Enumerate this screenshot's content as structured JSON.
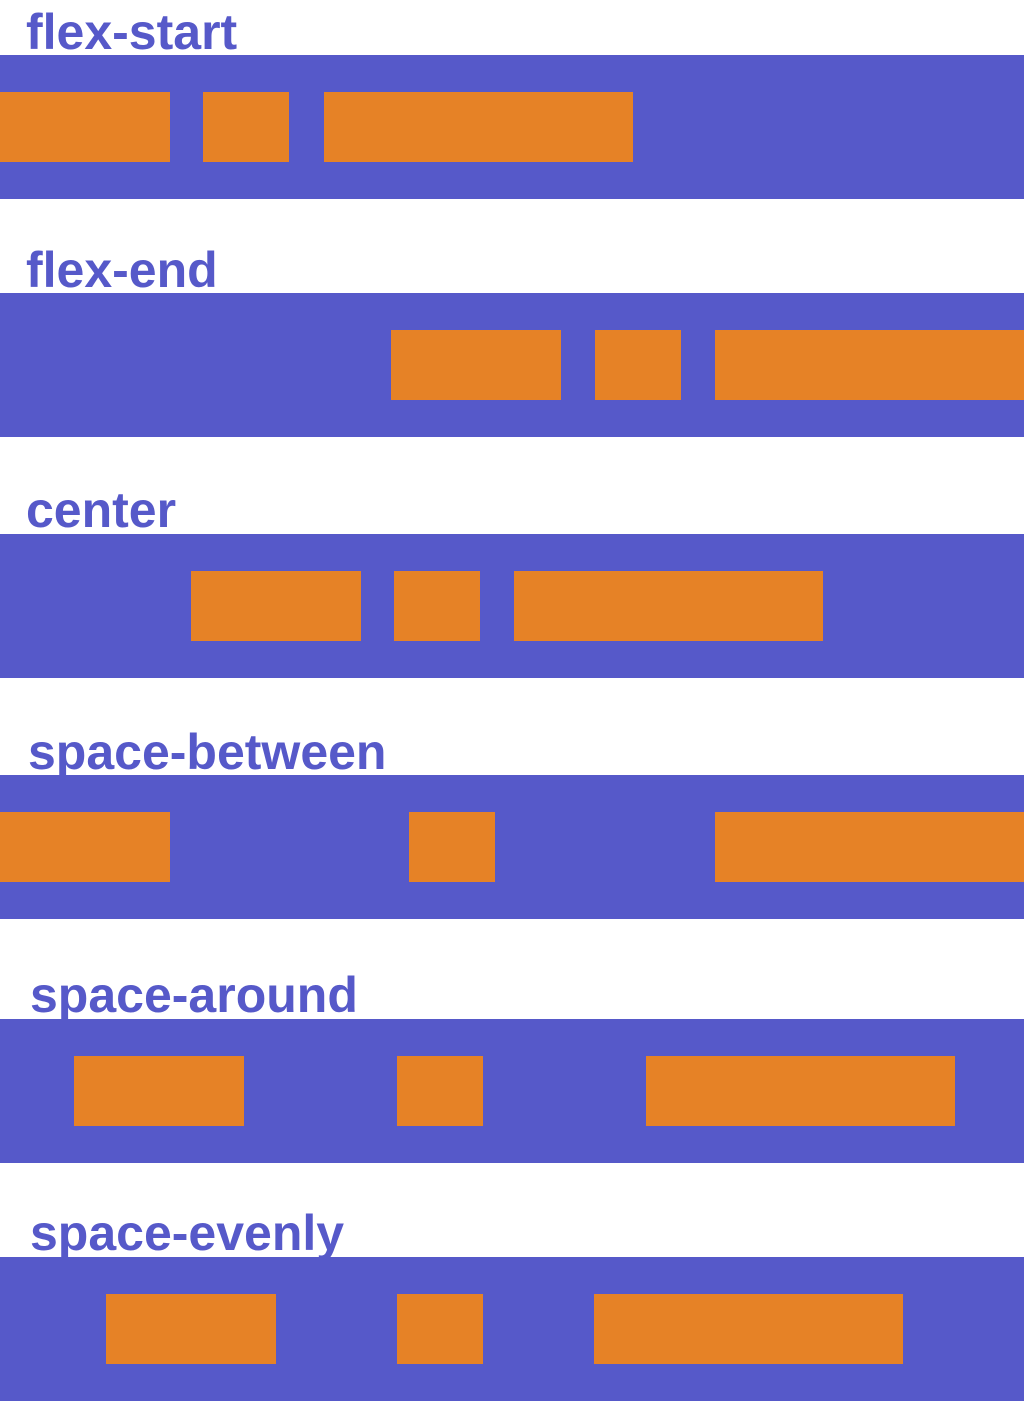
{
  "colors": {
    "container": "#5659c9",
    "item": "#e68226",
    "label_text": "#5659c9",
    "background": "#ffffff"
  },
  "sections": [
    {
      "label": "flex-start"
    },
    {
      "label": "flex-end"
    },
    {
      "label": "center"
    },
    {
      "label": "space-between"
    },
    {
      "label": "space-around"
    },
    {
      "label": "space-evenly"
    }
  ]
}
